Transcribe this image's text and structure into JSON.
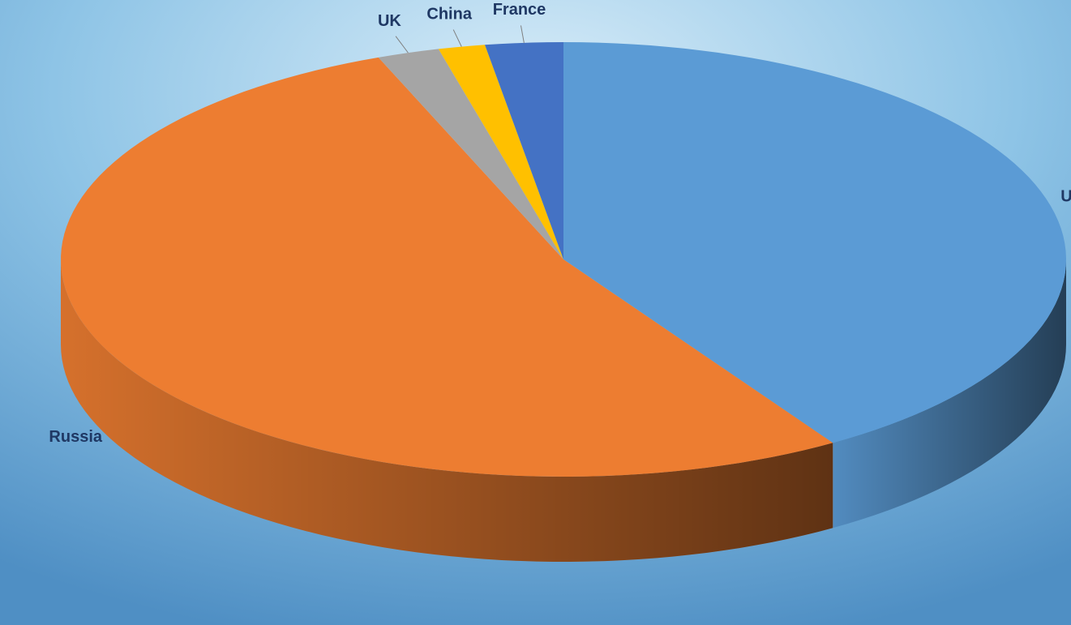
{
  "chart_data": {
    "type": "pie",
    "categories": [
      "US",
      "Russia",
      "UK",
      "China",
      "France"
    ],
    "values": [
      41,
      53,
      2,
      1.5,
      2.5
    ],
    "colors": [
      "#5b9bd5",
      "#ed7d31",
      "#a5a5a5",
      "#ffc000",
      "#4472c4"
    ]
  }
}
